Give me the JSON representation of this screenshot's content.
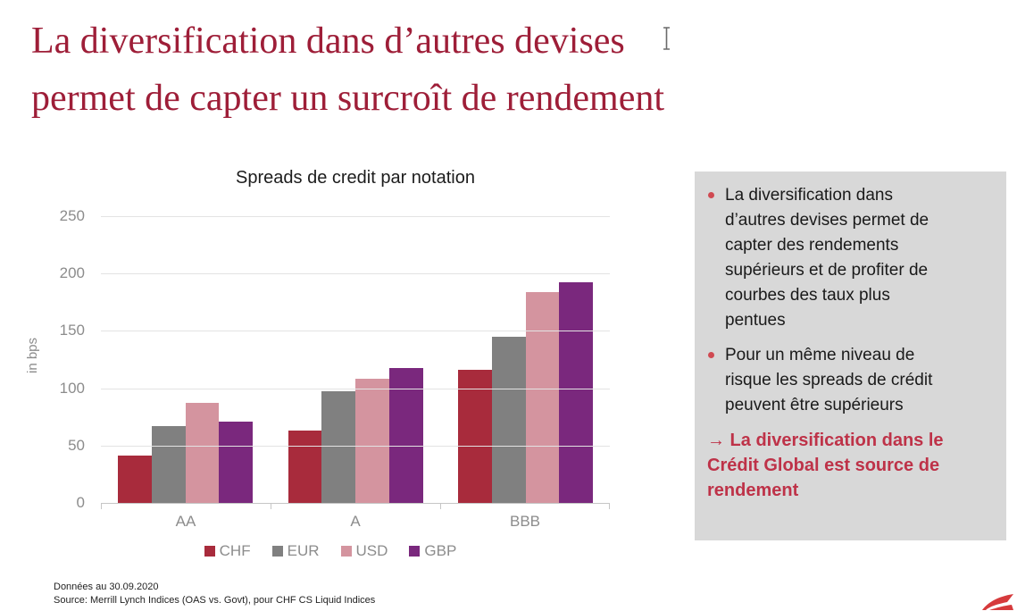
{
  "slide": {
    "title_lines": [
      "La diversification dans d’autres devises",
      "permet de capter un surcroît de rendement"
    ]
  },
  "chart_data": {
    "type": "bar",
    "title": "Spreads de credit par notation",
    "ylabel": "in bps",
    "xlabel": "",
    "categories": [
      "AA",
      "A",
      "BBB"
    ],
    "series": [
      {
        "name": "CHF",
        "color": "#A82B3C",
        "values": [
          41,
          63,
          116
        ]
      },
      {
        "name": "EUR",
        "color": "#808080",
        "values": [
          67,
          97,
          145
        ]
      },
      {
        "name": "USD",
        "color": "#D4949F",
        "values": [
          87,
          108,
          184
        ]
      },
      {
        "name": "GBP",
        "color": "#7A287D",
        "values": [
          71,
          118,
          192
        ]
      }
    ],
    "ylim": [
      0,
      250
    ],
    "yticks": [
      0,
      50,
      100,
      150,
      200,
      250
    ],
    "grid": true,
    "legend_position": "bottom"
  },
  "panel": {
    "bullets": [
      {
        "lines": [
          "La diversification dans",
          "d’autres devises permet de",
          "capter des rendements",
          "supérieurs et de profiter de",
          "courbes des taux plus",
          "pentues"
        ]
      },
      {
        "lines": [
          "Pour un même niveau de",
          "risque les spreads de crédit",
          "peuvent être supérieurs"
        ]
      }
    ],
    "conclusion_lines": [
      "→ La diversification dans le",
      "Crédit Global est source de",
      "rendement"
    ]
  },
  "footer": {
    "line1": "Données au 30.09.2020",
    "line2": "Source: Merrill Lynch Indices (OAS vs. Govt), pour CHF CS Liquid Indices"
  },
  "colors": {
    "title": "#9E1E38",
    "panel_bg": "#D8D8D8",
    "conclusion": "#BE3248",
    "bullet": "#D04A52",
    "axis_text": "#8C8C8C",
    "gridline": "#E3E3E3",
    "axis_line": "#C6C6C6",
    "logo": "#D63A3C"
  }
}
